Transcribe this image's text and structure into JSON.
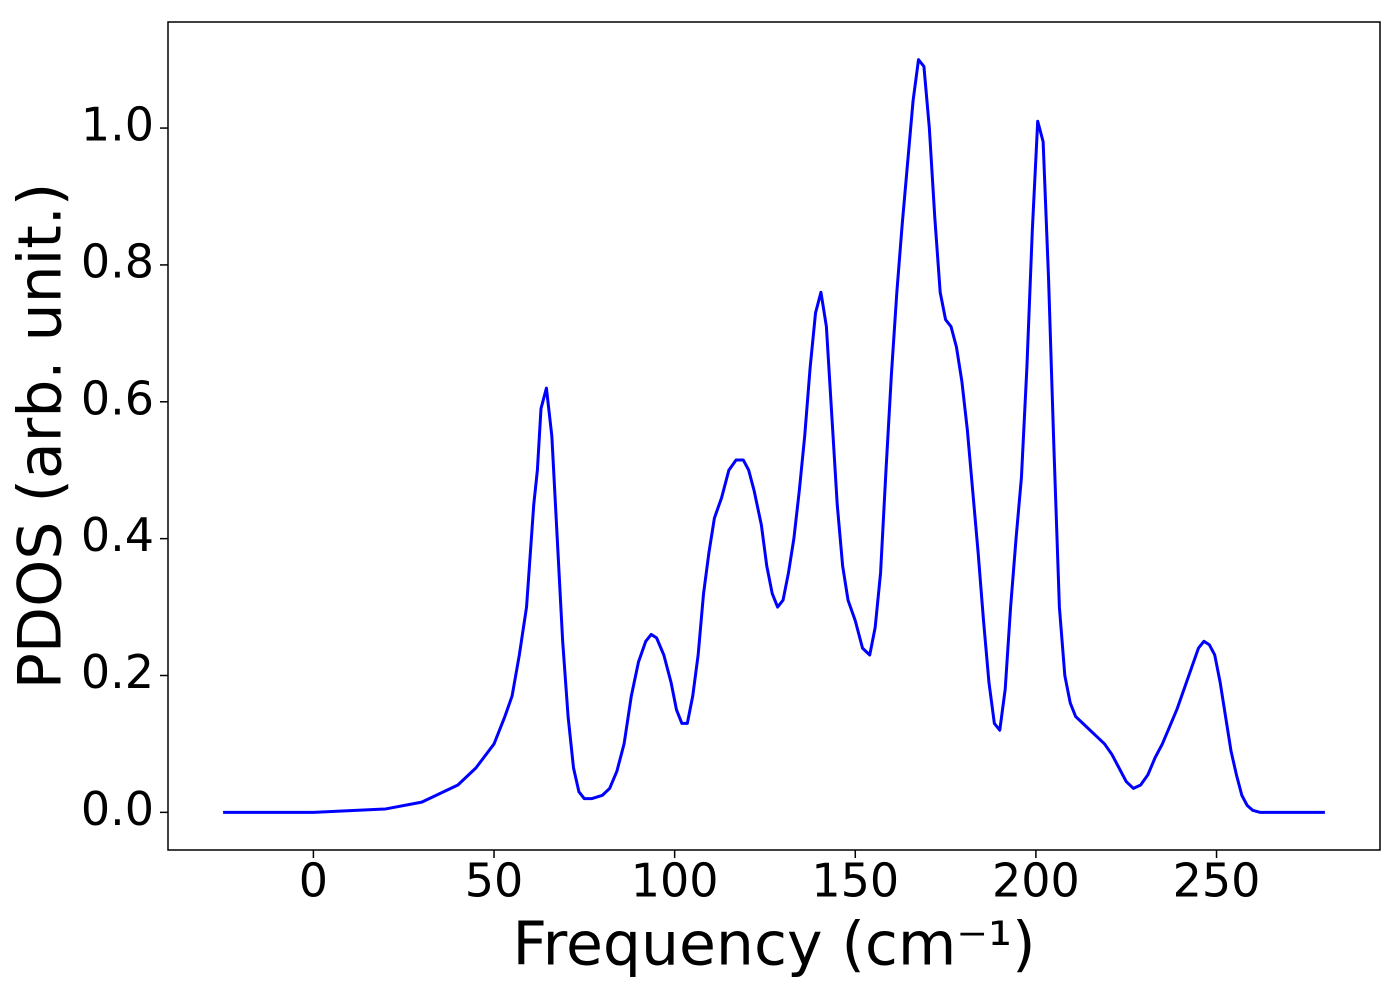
{
  "chart_data": {
    "type": "line",
    "xlabel": "Frequency (cm⁻¹)",
    "ylabel": "PDOS (arb. unit.)",
    "x": [
      -25,
      0,
      20,
      30,
      40,
      45,
      50,
      53,
      55,
      57,
      59,
      61,
      62,
      63,
      64.5,
      66,
      67.5,
      69,
      70.5,
      72,
      73.5,
      75,
      77,
      80,
      82,
      84,
      86,
      88,
      90,
      92,
      93.5,
      95,
      97,
      99,
      100.5,
      102,
      103.5,
      105,
      106.5,
      108,
      109.5,
      111,
      113,
      115,
      117,
      119,
      120.5,
      122,
      124,
      125.5,
      127,
      128.5,
      130,
      131.5,
      133,
      134.5,
      136,
      137.5,
      139,
      140.5,
      142,
      143.5,
      145,
      146.5,
      148,
      150,
      152,
      154,
      155.5,
      157,
      158.5,
      160,
      161.5,
      163,
      164.5,
      166,
      167.5,
      169,
      170.5,
      172,
      173.5,
      175,
      176.5,
      178,
      179.5,
      181,
      182.5,
      184,
      185.5,
      187,
      188.5,
      190,
      191.5,
      193,
      194.5,
      196,
      197.5,
      199,
      200.5,
      202,
      203.5,
      205,
      206.5,
      208,
      209.5,
      211,
      213,
      215,
      217,
      219,
      221,
      223,
      225,
      227,
      229,
      231,
      233,
      235,
      237,
      239,
      241,
      243,
      245,
      246.5,
      248,
      249.5,
      251,
      252.5,
      254,
      255.5,
      257,
      258.5,
      260,
      262,
      280
    ],
    "series": [
      {
        "name": "PDOS",
        "color": "#0000ff",
        "values": [
          0,
          0,
          0.005,
          0.015,
          0.04,
          0.065,
          0.1,
          0.14,
          0.17,
          0.23,
          0.3,
          0.45,
          0.5,
          0.59,
          0.62,
          0.55,
          0.4,
          0.25,
          0.14,
          0.065,
          0.03,
          0.02,
          0.02,
          0.025,
          0.035,
          0.06,
          0.1,
          0.17,
          0.22,
          0.25,
          0.26,
          0.255,
          0.23,
          0.19,
          0.15,
          0.13,
          0.13,
          0.17,
          0.23,
          0.32,
          0.38,
          0.43,
          0.46,
          0.5,
          0.515,
          0.515,
          0.5,
          0.47,
          0.42,
          0.36,
          0.32,
          0.3,
          0.31,
          0.35,
          0.4,
          0.47,
          0.55,
          0.65,
          0.73,
          0.76,
          0.71,
          0.58,
          0.45,
          0.36,
          0.31,
          0.28,
          0.24,
          0.23,
          0.27,
          0.35,
          0.5,
          0.64,
          0.76,
          0.86,
          0.95,
          1.04,
          1.1,
          1.09,
          1.0,
          0.87,
          0.76,
          0.72,
          0.71,
          0.68,
          0.63,
          0.56,
          0.47,
          0.38,
          0.28,
          0.19,
          0.13,
          0.12,
          0.18,
          0.3,
          0.4,
          0.49,
          0.65,
          0.85,
          1.01,
          0.98,
          0.78,
          0.53,
          0.3,
          0.2,
          0.16,
          0.14,
          0.13,
          0.12,
          0.11,
          0.1,
          0.085,
          0.065,
          0.045,
          0.035,
          0.04,
          0.055,
          0.08,
          0.1,
          0.125,
          0.15,
          0.18,
          0.21,
          0.24,
          0.25,
          0.245,
          0.23,
          0.19,
          0.14,
          0.09,
          0.055,
          0.025,
          0.01,
          0.003,
          0,
          0
        ]
      }
    ],
    "xlim": [
      -40.25,
      295.25
    ],
    "xticks": [
      0,
      50,
      100,
      150,
      200,
      250
    ],
    "ylim": [
      -0.055,
      1.155
    ],
    "yticks": [
      {
        "value": 0,
        "label": "0.0"
      },
      0.2,
      0.4,
      0.6,
      0.8,
      {
        "value": 1,
        "label": "1.0"
      }
    ]
  }
}
